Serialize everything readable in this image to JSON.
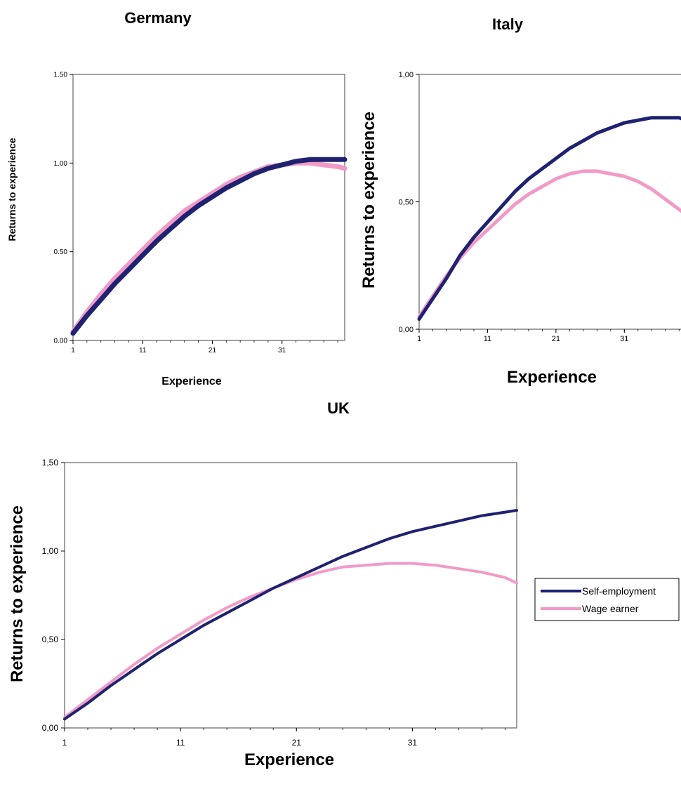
{
  "chart_data": [
    {
      "type": "line",
      "title": "Germany",
      "xlabel": "Experience",
      "ylabel": "Returns to experience",
      "xlim": [
        1,
        40
      ],
      "ylim": [
        0,
        1.5
      ],
      "xticks": [
        "1",
        "11",
        "21",
        "31"
      ],
      "yticks": [
        "0.00",
        "0.50",
        "1.00",
        "1.50"
      ],
      "grid": false,
      "colors": {
        "self": "#1f2270",
        "wage": "#f19ac8"
      },
      "series": [
        {
          "name": "Self-employment",
          "x": [
            1,
            3,
            5,
            7,
            9,
            11,
            13,
            15,
            17,
            19,
            21,
            23,
            25,
            27,
            29,
            31,
            33,
            35,
            37,
            39,
            40
          ],
          "values": [
            0.04,
            0.14,
            0.23,
            0.32,
            0.4,
            0.48,
            0.56,
            0.63,
            0.7,
            0.76,
            0.81,
            0.86,
            0.9,
            0.94,
            0.97,
            0.99,
            1.01,
            1.02,
            1.02,
            1.02,
            1.02
          ]
        },
        {
          "name": "Wage earner",
          "x": [
            1,
            3,
            5,
            7,
            9,
            11,
            13,
            15,
            17,
            19,
            21,
            23,
            25,
            27,
            29,
            31,
            33,
            35,
            37,
            39,
            40
          ],
          "values": [
            0.05,
            0.16,
            0.26,
            0.35,
            0.43,
            0.51,
            0.59,
            0.66,
            0.73,
            0.78,
            0.83,
            0.88,
            0.92,
            0.95,
            0.98,
            0.99,
            1.0,
            1.0,
            0.99,
            0.98,
            0.97
          ]
        }
      ]
    },
    {
      "type": "line",
      "title": "Italy",
      "xlabel": "Experience",
      "ylabel": "Returns to experience",
      "xlim": [
        1,
        40
      ],
      "ylim": [
        0,
        1.0
      ],
      "xticks": [
        "1",
        "11",
        "21",
        "31"
      ],
      "yticks": [
        "0,00",
        "0,50",
        "1,00"
      ],
      "grid": false,
      "colors": {
        "self": "#1f2270",
        "wage": "#f19ac8"
      },
      "series": [
        {
          "name": "Self-employment",
          "x": [
            1,
            3,
            5,
            7,
            9,
            11,
            13,
            15,
            17,
            19,
            21,
            23,
            25,
            27,
            29,
            31,
            33,
            35,
            37,
            39,
            40
          ],
          "values": [
            0.04,
            0.12,
            0.2,
            0.29,
            0.36,
            0.42,
            0.48,
            0.54,
            0.59,
            0.63,
            0.67,
            0.71,
            0.74,
            0.77,
            0.79,
            0.81,
            0.82,
            0.83,
            0.83,
            0.83,
            0.82
          ]
        },
        {
          "name": "Wage earner",
          "x": [
            1,
            3,
            5,
            7,
            9,
            11,
            13,
            15,
            17,
            19,
            21,
            23,
            25,
            27,
            29,
            31,
            33,
            35,
            37,
            39,
            40
          ],
          "values": [
            0.05,
            0.13,
            0.21,
            0.28,
            0.34,
            0.39,
            0.44,
            0.49,
            0.53,
            0.56,
            0.59,
            0.61,
            0.62,
            0.62,
            0.61,
            0.6,
            0.58,
            0.55,
            0.51,
            0.47,
            0.45
          ]
        }
      ]
    },
    {
      "type": "line",
      "title": "UK",
      "xlabel": "Experience",
      "ylabel": "Returns to experience",
      "xlim": [
        1,
        40
      ],
      "ylim": [
        0,
        1.5
      ],
      "xticks": [
        "1",
        "11",
        "21",
        "31"
      ],
      "yticks": [
        "0,00",
        "0,50",
        "1,00",
        "1,50"
      ],
      "grid": false,
      "legend": "right",
      "colors": {
        "self": "#1f2270",
        "wage": "#f19ac8"
      },
      "series": [
        {
          "name": "Self-employment",
          "x": [
            1,
            3,
            5,
            7,
            9,
            11,
            13,
            15,
            17,
            19,
            21,
            23,
            25,
            27,
            29,
            31,
            33,
            35,
            37,
            39,
            40
          ],
          "values": [
            0.05,
            0.14,
            0.24,
            0.33,
            0.42,
            0.5,
            0.58,
            0.65,
            0.72,
            0.79,
            0.85,
            0.91,
            0.97,
            1.02,
            1.07,
            1.11,
            1.14,
            1.17,
            1.2,
            1.22,
            1.23
          ]
        },
        {
          "name": "Wage earner",
          "x": [
            1,
            3,
            5,
            7,
            9,
            11,
            13,
            15,
            17,
            19,
            21,
            23,
            25,
            27,
            29,
            31,
            33,
            35,
            37,
            39,
            40
          ],
          "values": [
            0.06,
            0.16,
            0.26,
            0.36,
            0.45,
            0.53,
            0.61,
            0.68,
            0.74,
            0.79,
            0.84,
            0.88,
            0.91,
            0.92,
            0.93,
            0.93,
            0.92,
            0.9,
            0.88,
            0.85,
            0.82
          ]
        }
      ]
    }
  ]
}
